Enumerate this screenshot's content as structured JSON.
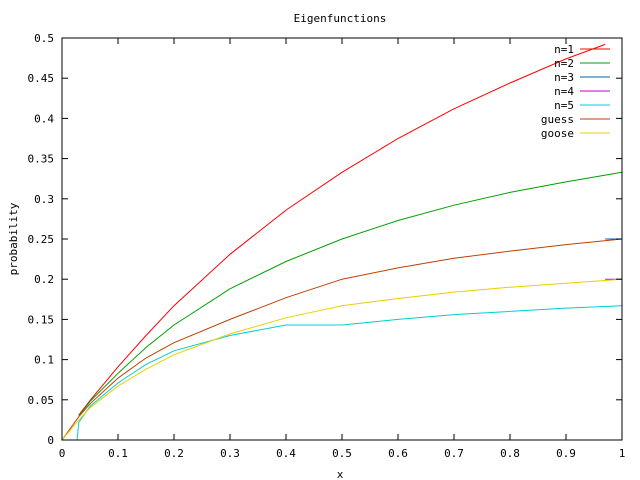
{
  "chart_data": {
    "type": "line",
    "title": "Eigenfunctions",
    "xlabel": "x",
    "ylabel": "probability",
    "xlim": [
      0,
      1
    ],
    "ylim": [
      0,
      0.5
    ],
    "x_ticks": [
      "0",
      "0.1",
      "0.2",
      "0.3",
      "0.4",
      "0.5",
      "0.6",
      "0.7",
      "0.8",
      "0.9",
      "1"
    ],
    "y_ticks": [
      "0",
      "0.05",
      "0.1",
      "0.15",
      "0.2",
      "0.25",
      "0.3",
      "0.35",
      "0.4",
      "0.45",
      "0.5"
    ],
    "grid": false,
    "legend_position": "top-right",
    "series": [
      {
        "name": "n=1",
        "color": "#ff0000",
        "x": [
          0.03,
          0.05,
          0.1,
          0.15,
          0.2,
          0.3,
          0.4,
          0.5,
          0.6,
          0.7,
          0.8,
          0.9,
          0.97
        ],
        "y": [
          0.031,
          0.049,
          0.091,
          0.13,
          0.167,
          0.231,
          0.286,
          0.333,
          0.375,
          0.412,
          0.444,
          0.474,
          0.492
        ]
      },
      {
        "name": "n=2",
        "color": "#00a000",
        "x": [
          0.03,
          0.05,
          0.1,
          0.15,
          0.2,
          0.3,
          0.4,
          0.5,
          0.6,
          0.7,
          0.8,
          0.9,
          1.0
        ],
        "y": [
          0.03,
          0.048,
          0.083,
          0.115,
          0.143,
          0.188,
          0.222,
          0.25,
          0.273,
          0.292,
          0.308,
          0.321,
          0.333
        ]
      },
      {
        "name": "n=3",
        "color": "#0060ad",
        "x": [
          0.97,
          1.0
        ],
        "y": [
          0.25,
          0.25
        ]
      },
      {
        "name": "n=4",
        "color": "#c000c0",
        "x": [
          0.97,
          1.0
        ],
        "y": [
          0.2,
          0.2
        ]
      },
      {
        "name": "n=5",
        "color": "#00d0d0",
        "x": [
          0.027,
          0.03,
          0.05,
          0.1,
          0.15,
          0.2,
          0.3,
          0.4,
          0.5,
          0.6,
          0.7,
          0.8,
          0.9,
          1.0
        ],
        "y": [
          0.0,
          0.022,
          0.042,
          0.071,
          0.094,
          0.111,
          0.13,
          0.143,
          0.143,
          0.15,
          0.156,
          0.16,
          0.164,
          0.167
        ]
      },
      {
        "name": "guess",
        "color": "#c04000",
        "x": [
          0.0,
          0.03,
          0.05,
          0.1,
          0.15,
          0.2,
          0.3,
          0.4,
          0.5,
          0.6,
          0.7,
          0.8,
          0.9,
          1.0
        ],
        "y": [
          0.0,
          0.029,
          0.045,
          0.077,
          0.102,
          0.121,
          0.15,
          0.177,
          0.2,
          0.214,
          0.226,
          0.235,
          0.243,
          0.25
        ]
      },
      {
        "name": "goose",
        "color": "#e8d000",
        "x": [
          0.0,
          0.03,
          0.05,
          0.1,
          0.15,
          0.2,
          0.3,
          0.4,
          0.5,
          0.6,
          0.7,
          0.8,
          0.9,
          1.0
        ],
        "y": [
          0.0,
          0.025,
          0.04,
          0.067,
          0.088,
          0.106,
          0.132,
          0.152,
          0.167,
          0.176,
          0.184,
          0.19,
          0.195,
          0.2
        ]
      }
    ]
  }
}
